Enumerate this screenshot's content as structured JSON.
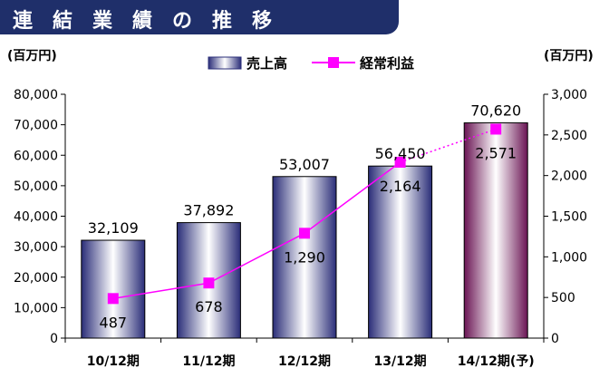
{
  "title": "連結業績の推移",
  "colors": {
    "title_bg": "#1f2f6a",
    "bar_edge": "#2a2d78",
    "bar_mid": "#ffffff",
    "forecast_edge": "#6a1454",
    "line": "#ff00ff",
    "axis": "#000000"
  },
  "chart_data": {
    "type": "bar",
    "categories": [
      "10/12期",
      "11/12期",
      "12/12期",
      "13/12期",
      "14/12期(予)"
    ],
    "series": [
      {
        "name": "売上高",
        "type": "bar",
        "axis": "left",
        "values": [
          32109,
          37892,
          53007,
          56450,
          70620
        ],
        "labels": [
          "32,109",
          "37,892",
          "53,007",
          "56,450",
          "70,620"
        ]
      },
      {
        "name": "経常利益",
        "type": "line",
        "axis": "right",
        "values": [
          487,
          678,
          1290,
          2164,
          2571
        ],
        "labels": [
          "487",
          "678",
          "1,290",
          "2,164",
          "2,571"
        ]
      }
    ],
    "y_left": {
      "unit": "(百万円)",
      "ylim": [
        0,
        80000
      ],
      "ticks": [
        "0",
        "10,000",
        "20,000",
        "30,000",
        "40,000",
        "50,000",
        "60,000",
        "70,000",
        "80,000"
      ]
    },
    "y_right": {
      "unit": "(百万円)",
      "ylim": [
        0,
        3000
      ],
      "ticks": [
        "0",
        "500",
        "1,000",
        "1,500",
        "2,000",
        "2,500",
        "3,000"
      ]
    },
    "legend": {
      "position": "top-center",
      "entries": [
        "売上高",
        "経常利益"
      ]
    },
    "forecast_last": true,
    "grid": false
  }
}
